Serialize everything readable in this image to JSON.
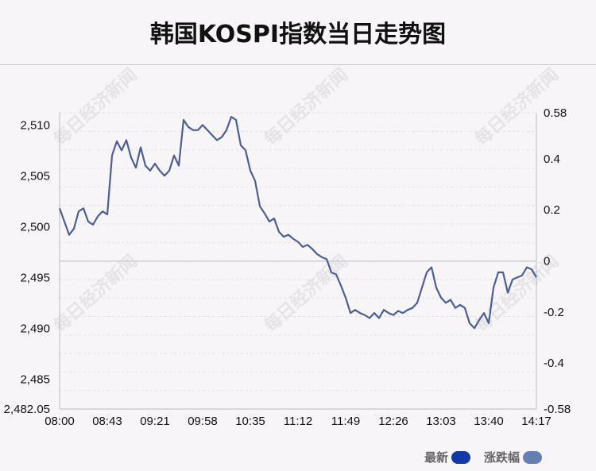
{
  "title": "韩国KOSPI指数当日走势图",
  "watermark": "每日经济新闻",
  "legend": {
    "latest": {
      "label": "最新",
      "color": "#1238a8"
    },
    "change": {
      "label": "涨跌幅",
      "color": "#667fb2"
    }
  },
  "chart_data": {
    "type": "line",
    "line_color": "#4a5f96",
    "grid": true,
    "legend_position": "bottom-right",
    "x_ticks": [
      "08:00",
      "08:43",
      "09:21",
      "09:58",
      "10:35",
      "11:12",
      "11:49",
      "12:26",
      "13:03",
      "13:40",
      "14:17"
    ],
    "y_left": {
      "ticks": [
        2510,
        2505,
        2500,
        2495,
        2490,
        2485
      ],
      "tick_labels": [
        "2,510",
        "2,505",
        "2,500",
        "2,495",
        "2,490",
        "2,485"
      ],
      "min_label": "2,482.05",
      "range": [
        2482.05,
        2511.2
      ]
    },
    "y_right": {
      "tick_labels": [
        "0.58",
        "0.4",
        "0.2",
        "0",
        "-0.2",
        "-0.4",
        "-0.58"
      ],
      "tick_values": [
        0.58,
        0.4,
        0.2,
        0,
        -0.2,
        -0.4,
        -0.58
      ]
    },
    "reference_value": 2496.6,
    "series": [
      {
        "x_start": "08:00",
        "x_end": "14:17",
        "values": [
          2501.8,
          2500.5,
          2499.2,
          2499.8,
          2501.5,
          2501.8,
          2500.5,
          2500.2,
          2501.0,
          2501.5,
          2501.2,
          2507.0,
          2508.4,
          2507.5,
          2508.5,
          2506.8,
          2505.8,
          2507.8,
          2506.0,
          2505.5,
          2506.2,
          2505.5,
          2505.0,
          2505.5,
          2507.0,
          2506.0,
          2510.5,
          2509.8,
          2509.5,
          2509.5,
          2510.0,
          2509.5,
          2509.0,
          2508.5,
          2508.8,
          2509.5,
          2510.8,
          2510.5,
          2508.0,
          2507.5,
          2505.5,
          2504.5,
          2502.0,
          2501.3,
          2500.5,
          2500.8,
          2499.5,
          2499.0,
          2499.2,
          2498.8,
          2498.5,
          2498.0,
          2498.2,
          2497.8,
          2497.3,
          2497.0,
          2496.8,
          2495.5,
          2495.3,
          2494.2,
          2493.0,
          2491.5,
          2491.8,
          2491.5,
          2491.3,
          2491.0,
          2491.5,
          2491.0,
          2491.8,
          2491.5,
          2491.3,
          2491.7,
          2491.5,
          2491.8,
          2492.0,
          2492.5,
          2494.0,
          2495.5,
          2496.0,
          2494.0,
          2493.0,
          2492.5,
          2492.8,
          2492.0,
          2492.3,
          2492.0,
          2490.5,
          2490.0,
          2490.8,
          2491.5,
          2490.5,
          2494.0,
          2495.5,
          2495.5,
          2493.5,
          2494.8,
          2495.0,
          2495.2,
          2496.0,
          2495.8,
          2495.0
        ]
      }
    ]
  }
}
